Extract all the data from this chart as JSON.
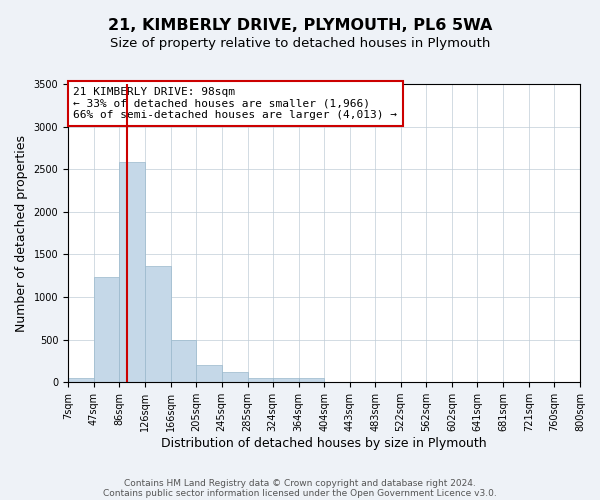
{
  "title": "21, KIMBERLY DRIVE, PLYMOUTH, PL6 5WA",
  "subtitle": "Size of property relative to detached houses in Plymouth",
  "xlabel": "Distribution of detached houses by size in Plymouth",
  "ylabel": "Number of detached properties",
  "bin_edges": [
    7,
    47,
    86,
    126,
    166,
    205,
    245,
    285,
    324,
    364,
    404,
    443,
    483,
    522,
    562,
    602,
    641,
    681,
    721,
    760,
    800
  ],
  "bar_heights": [
    50,
    1230,
    2590,
    1360,
    500,
    200,
    120,
    50,
    50,
    50,
    5,
    5,
    5,
    0,
    0,
    0,
    0,
    0,
    0,
    0
  ],
  "bar_color": "#c5d8e8",
  "bar_edgecolor": "#9ab8cc",
  "property_size": 98,
  "vline_color": "#cc0000",
  "ylim": [
    0,
    3500
  ],
  "annotation_text": "21 KIMBERLY DRIVE: 98sqm\n← 33% of detached houses are smaller (1,966)\n66% of semi-detached houses are larger (4,013) →",
  "annotation_box_color": "#ffffff",
  "annotation_box_edgecolor": "#cc0000",
  "footer1": "Contains HM Land Registry data © Crown copyright and database right 2024.",
  "footer2": "Contains public sector information licensed under the Open Government Licence v3.0.",
  "background_color": "#eef2f7",
  "plot_background_color": "#ffffff",
  "title_fontsize": 11.5,
  "subtitle_fontsize": 9.5,
  "label_fontsize": 9,
  "tick_fontsize": 7,
  "annotation_fontsize": 8,
  "footer_fontsize": 6.5
}
